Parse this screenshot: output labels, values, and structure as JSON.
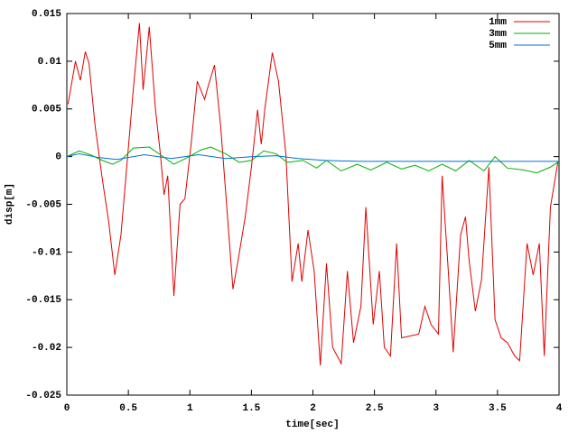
{
  "chart_data": {
    "type": "line",
    "xlabel": "time[sec]",
    "ylabel": "disp[m]",
    "xlim": [
      0,
      4
    ],
    "ylim": [
      -0.025,
      0.015
    ],
    "xticks": [
      0,
      0.5,
      1,
      1.5,
      2,
      2.5,
      3,
      3.5,
      4
    ],
    "yticks": [
      0.015,
      0.01,
      0.005,
      0,
      -0.005,
      -0.01,
      -0.015,
      -0.02,
      -0.025
    ],
    "grid": false,
    "legend": "top-right",
    "series": [
      {
        "name": "1mm",
        "color": "#e00000",
        "x": [
          0.01,
          0.07,
          0.11,
          0.15,
          0.18,
          0.23,
          0.29,
          0.34,
          0.39,
          0.44,
          0.49,
          0.54,
          0.59,
          0.62,
          0.67,
          0.72,
          0.76,
          0.79,
          0.82,
          0.87,
          0.92,
          0.96,
          1.01,
          1.06,
          1.12,
          1.14,
          1.2,
          1.25,
          1.3,
          1.35,
          1.39,
          1.45,
          1.5,
          1.55,
          1.58,
          1.61,
          1.67,
          1.72,
          1.78,
          1.83,
          1.88,
          1.91,
          1.96,
          2.01,
          2.06,
          2.11,
          2.16,
          2.23,
          2.28,
          2.33,
          2.39,
          2.43,
          2.49,
          2.54,
          2.58,
          2.63,
          2.68,
          2.72,
          2.86,
          2.91,
          2.96,
          3.02,
          3.05,
          3.1,
          3.14,
          3.2,
          3.24,
          3.27,
          3.32,
          3.37,
          3.43,
          3.48,
          3.53,
          3.58,
          3.64,
          3.68,
          3.74,
          3.79,
          3.84,
          3.88,
          3.93,
          3.99
        ],
        "values": [
          0.0055,
          0.01,
          0.008,
          0.011,
          0.0098,
          0.0032,
          -0.0025,
          -0.0068,
          -0.0124,
          -0.0082,
          -0.0006,
          0.007,
          0.014,
          0.007,
          0.0136,
          0.005,
          0.0003,
          -0.004,
          -0.002,
          -0.0146,
          -0.005,
          -0.0044,
          0.0013,
          0.0079,
          0.006,
          0.007,
          0.0096,
          0.0032,
          -0.0053,
          -0.0139,
          -0.011,
          -0.0063,
          -0.0011,
          0.0049,
          0.0013,
          0.0051,
          0.0109,
          0.0079,
          0.0003,
          -0.0131,
          -0.0091,
          -0.0131,
          -0.0077,
          -0.012,
          -0.0219,
          -0.0112,
          -0.02,
          -0.0217,
          -0.012,
          -0.0195,
          -0.0157,
          -0.0053,
          -0.0176,
          -0.012,
          -0.02,
          -0.0209,
          -0.0091,
          -0.019,
          -0.0186,
          -0.0157,
          -0.0176,
          -0.0186,
          -0.002,
          -0.012,
          -0.0205,
          -0.0082,
          -0.0063,
          -0.011,
          -0.0162,
          -0.0129,
          -0.0011,
          -0.0171,
          -0.019,
          -0.0195,
          -0.0209,
          -0.0214,
          -0.0091,
          -0.0124,
          -0.0091,
          -0.0209,
          -0.0053,
          -0.0006
        ]
      },
      {
        "name": "3mm",
        "color": "#00b000",
        "x": [
          0,
          0.1,
          0.19,
          0.29,
          0.37,
          0.44,
          0.54,
          0.67,
          0.76,
          0.87,
          0.98,
          1.09,
          1.17,
          1.29,
          1.4,
          1.5,
          1.6,
          1.7,
          1.79,
          1.92,
          2.03,
          2.11,
          2.23,
          2.36,
          2.47,
          2.6,
          2.72,
          2.83,
          2.94,
          3.05,
          3.16,
          3.27,
          3.39,
          3.48,
          3.58,
          3.71,
          3.82,
          3.93,
          4
        ],
        "values": [
          0,
          0.0006,
          0.0002,
          -0.0004,
          -0.0008,
          -0.0004,
          0.0009,
          0.001,
          0.0002,
          -0.0008,
          -0.0001,
          0.0007,
          0.001,
          0.0003,
          -0.0006,
          -0.0004,
          0.0006,
          0.0003,
          -0.0006,
          -0.0004,
          -0.0012,
          -0.0004,
          -0.0015,
          -0.0008,
          -0.0014,
          -0.0006,
          -0.0013,
          -0.0009,
          -0.0015,
          -0.0008,
          -0.0015,
          -0.0004,
          -0.0015,
          0,
          -0.0012,
          -0.0014,
          -0.0017,
          -0.0011,
          -0.0005
        ]
      },
      {
        "name": "5mm",
        "color": "#0070d0",
        "x": [
          0,
          0.1,
          0.26,
          0.41,
          0.63,
          0.85,
          1.07,
          1.29,
          1.51,
          1.7,
          1.88,
          2.1,
          2.39,
          4
        ],
        "values": [
          0,
          0.0003,
          -0.0001,
          -0.0003,
          0.0002,
          -0.0002,
          0.0002,
          -0.0002,
          0,
          0.0001,
          -0.0002,
          -0.0004,
          -0.0005,
          -0.0005
        ]
      }
    ]
  }
}
